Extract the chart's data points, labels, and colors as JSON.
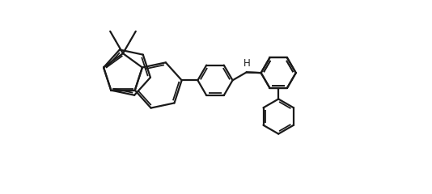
{
  "bg_color": "#ffffff",
  "bond_color": "#1a1a1a",
  "bond_width": 1.6,
  "figsize": [
    5.34,
    2.4
  ],
  "dpi": 100,
  "xlim": [
    -0.5,
    10.5
  ],
  "ylim": [
    -3.8,
    2.8
  ]
}
